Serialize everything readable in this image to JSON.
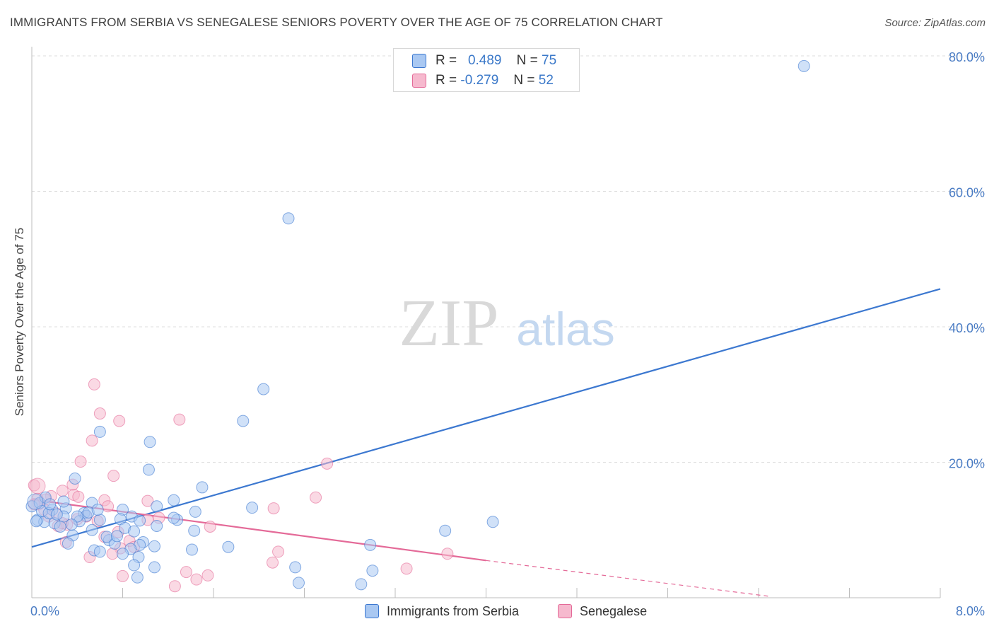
{
  "title": "IMMIGRANTS FROM SERBIA VS SENEGALESE SENIORS POVERTY OVER THE AGE OF 75 CORRELATION CHART",
  "source": "Source: ZipAtlas.com",
  "watermark": {
    "zip": "ZIP",
    "atlas": "atlas"
  },
  "colors": {
    "blue": "#3c78d0",
    "blue_fill": "#a9c8f2",
    "pink": "#e46a98",
    "pink_fill": "#f6b9ce",
    "grid": "#dedede",
    "tick_label": "#4a7cc4"
  },
  "legend_top": [
    {
      "r_label": "R =",
      "r_value": "0.489",
      "n_label": "N =",
      "n_value": "75"
    },
    {
      "r_label": "R =",
      "r_value": "-0.279",
      "n_label": "N =",
      "n_value": "52"
    }
  ],
  "legend_bottom": [
    "Immigrants from Serbia",
    "Senegalese"
  ],
  "chart_data": {
    "type": "scatter",
    "title": "IMMIGRANTS FROM SERBIA VS SENEGALESE SENIORS POVERTY OVER THE AGE OF 75 CORRELATION CHART",
    "xlabel": "",
    "ylabel": "Seniors Poverty Over the Age of 75",
    "xlim": [
      0,
      8
    ],
    "ylim": [
      0,
      80
    ],
    "x_tick_labels": [
      "0.0%",
      "8.0%"
    ],
    "y_ticks": [
      20,
      40,
      60,
      80
    ],
    "y_tick_labels": [
      "20.0%",
      "40.0%",
      "60.0%",
      "80.0%"
    ],
    "grid": true,
    "series": [
      {
        "name": "Immigrants from Serbia",
        "color": "#3c78d0",
        "r": 0.489,
        "n": 75,
        "trend": {
          "x0": 0,
          "y0": 7.5,
          "x1": 8,
          "y1": 45.6
        },
        "points": [
          [
            6.8,
            78.5
          ],
          [
            2.26,
            56.0
          ],
          [
            2.04,
            30.8
          ],
          [
            1.86,
            26.1
          ],
          [
            0.6,
            24.5
          ],
          [
            1.04,
            23.0
          ],
          [
            1.03,
            18.9
          ],
          [
            0.38,
            17.6
          ],
          [
            1.5,
            16.3
          ],
          [
            1.25,
            14.4
          ],
          [
            0.53,
            14.0
          ],
          [
            1.1,
            13.5
          ],
          [
            0.3,
            13.2
          ],
          [
            0.8,
            13.0
          ],
          [
            1.94,
            13.3
          ],
          [
            0.18,
            13.0
          ],
          [
            1.44,
            12.7
          ],
          [
            0.46,
            12.5
          ],
          [
            0.48,
            12.1
          ],
          [
            0.28,
            12.0
          ],
          [
            0.88,
            12.0
          ],
          [
            0.05,
            11.5
          ],
          [
            0.11,
            11.2
          ],
          [
            0.2,
            11.0
          ],
          [
            1.28,
            11.5
          ],
          [
            0.95,
            11.4
          ],
          [
            0.78,
            11.6
          ],
          [
            4.06,
            11.2
          ],
          [
            0.42,
            11.3
          ],
          [
            0.25,
            10.5
          ],
          [
            0.53,
            10.0
          ],
          [
            0.82,
            10.3
          ],
          [
            0.9,
            9.8
          ],
          [
            1.1,
            10.6
          ],
          [
            0.36,
            9.2
          ],
          [
            0.68,
            8.5
          ],
          [
            0.73,
            8.0
          ],
          [
            0.98,
            8.2
          ],
          [
            0.32,
            8.0
          ],
          [
            1.43,
            9.9
          ],
          [
            1.73,
            7.5
          ],
          [
            3.64,
            9.9
          ],
          [
            0.95,
            7.8
          ],
          [
            0.87,
            7.2
          ],
          [
            1.08,
            7.6
          ],
          [
            1.41,
            7.1
          ],
          [
            0.55,
            7.0
          ],
          [
            0.6,
            6.8
          ],
          [
            2.98,
            7.8
          ],
          [
            0.8,
            6.5
          ],
          [
            0.94,
            6.0
          ],
          [
            0.9,
            4.8
          ],
          [
            1.08,
            4.5
          ],
          [
            2.32,
            4.5
          ],
          [
            3.0,
            4.0
          ],
          [
            0.93,
            3.0
          ],
          [
            2.35,
            2.2
          ],
          [
            2.9,
            2.0
          ],
          [
            0.0,
            13.5
          ],
          [
            0.07,
            14.0
          ],
          [
            0.09,
            12.8
          ],
          [
            0.15,
            12.5
          ],
          [
            0.04,
            11.3
          ],
          [
            0.22,
            12.3
          ],
          [
            0.6,
            11.5
          ],
          [
            0.66,
            9.0
          ],
          [
            0.75,
            9.1
          ],
          [
            0.5,
            12.6
          ],
          [
            0.12,
            14.8
          ],
          [
            0.28,
            14.2
          ],
          [
            0.4,
            12.0
          ],
          [
            1.25,
            11.8
          ],
          [
            0.35,
            10.8
          ],
          [
            0.16,
            13.8
          ],
          [
            0.58,
            13.0
          ]
        ]
      },
      {
        "name": "Senegalese",
        "color": "#e46a98",
        "r": -0.279,
        "n": 52,
        "trend": {
          "x0": 0,
          "y0": 14.5,
          "x1": 4.0,
          "y1": 5.5,
          "dashed_to_x": 6.5,
          "dashed_to_y": 0.2
        },
        "points": [
          [
            0.55,
            31.5
          ],
          [
            0.6,
            27.2
          ],
          [
            0.77,
            26.1
          ],
          [
            1.3,
            26.3
          ],
          [
            0.53,
            23.2
          ],
          [
            0.43,
            20.1
          ],
          [
            2.6,
            19.8
          ],
          [
            0.72,
            18.0
          ],
          [
            0.02,
            16.6
          ],
          [
            0.36,
            16.7
          ],
          [
            0.27,
            15.8
          ],
          [
            0.37,
            15.2
          ],
          [
            0.41,
            14.9
          ],
          [
            0.64,
            14.4
          ],
          [
            1.02,
            14.3
          ],
          [
            2.5,
            14.8
          ],
          [
            0.17,
            15.0
          ],
          [
            0.12,
            14.5
          ],
          [
            0.05,
            14.6
          ],
          [
            0.06,
            13.8
          ],
          [
            0.67,
            13.5
          ],
          [
            2.13,
            13.2
          ],
          [
            0.21,
            12.5
          ],
          [
            0.48,
            12.0
          ],
          [
            1.12,
            11.8
          ],
          [
            1.02,
            11.5
          ],
          [
            0.4,
            11.6
          ],
          [
            0.58,
            11.3
          ],
          [
            0.23,
            10.6
          ],
          [
            0.31,
            10.8
          ],
          [
            1.57,
            10.5
          ],
          [
            0.76,
            9.7
          ],
          [
            0.64,
            9.0
          ],
          [
            0.86,
            8.4
          ],
          [
            0.3,
            8.2
          ],
          [
            0.9,
            7.5
          ],
          [
            0.78,
            7.3
          ],
          [
            0.71,
            6.5
          ],
          [
            2.17,
            6.8
          ],
          [
            3.66,
            6.5
          ],
          [
            0.51,
            6.0
          ],
          [
            2.12,
            5.2
          ],
          [
            3.3,
            4.3
          ],
          [
            1.36,
            3.8
          ],
          [
            1.55,
            3.3
          ],
          [
            0.8,
            3.2
          ],
          [
            1.45,
            2.7
          ],
          [
            1.26,
            1.7
          ],
          [
            0.11,
            13.0
          ],
          [
            0.02,
            13.8
          ],
          [
            0.27,
            11.0
          ],
          [
            0.15,
            12.0
          ]
        ]
      }
    ]
  }
}
